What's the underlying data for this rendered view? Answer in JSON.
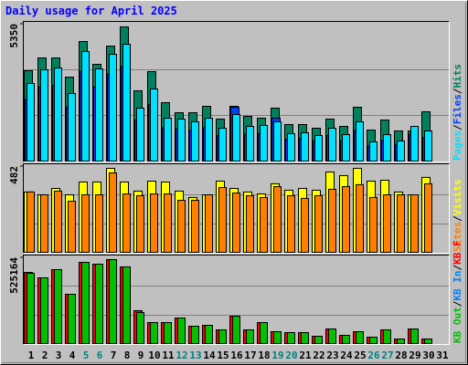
{
  "title": "Daily usage for April 2025",
  "separator": "/",
  "chart_data": [
    {
      "type": "bar",
      "categories": [
        "1",
        "2",
        "3",
        "4",
        "5",
        "6",
        "7",
        "8",
        "9",
        "10",
        "11",
        "12",
        "13",
        "14",
        "15",
        "16",
        "17",
        "18",
        "19",
        "20",
        "21",
        "22",
        "23",
        "24",
        "25",
        "26",
        "27",
        "28",
        "29",
        "30",
        "31"
      ],
      "ylim": [
        0,
        5350
      ],
      "yticks": [
        5350
      ],
      "series": [
        {
          "name": "Hits",
          "color": "#00805c",
          "values": [
            3531,
            4030,
            4030,
            3281,
            4672,
            3781,
            4494,
            5243,
            2746,
            3495,
            2283,
            1890,
            1890,
            2140,
            1641,
            2140,
            1748,
            1676,
            2069,
            1427,
            1427,
            1284,
            1641,
            1355,
            2104,
            1213,
            1605,
            1177,
            1177,
            1926,
            null
          ]
        },
        {
          "name": "Files",
          "color": "#0040ff",
          "values": [
            2400,
            2900,
            2950,
            2100,
            3500,
            2900,
            3400,
            3700,
            1600,
            2200,
            1300,
            1250,
            1200,
            1300,
            1000,
            2100,
            1050,
            1080,
            1680,
            850,
            880,
            780,
            1000,
            800,
            1200,
            590,
            800,
            620,
            1050,
            920,
            null
          ]
        },
        {
          "name": "Pages",
          "color": "#00e0ff",
          "values": [
            3032,
            3567,
            3638,
            2639,
            4280,
            3602,
            4173,
            4565,
            2069,
            2818,
            1676,
            1641,
            1534,
            1676,
            1284,
            1819,
            1355,
            1391,
            1534,
            1070,
            1106,
            999,
            1284,
            1034,
            1534,
            749,
            1034,
            785,
            1355,
            1177,
            null
          ]
        }
      ]
    },
    {
      "type": "bar",
      "categories": [
        "1",
        "2",
        "3",
        "4",
        "5",
        "6",
        "7",
        "8",
        "9",
        "10",
        "11",
        "12",
        "13",
        "14",
        "15",
        "16",
        "17",
        "18",
        "19",
        "20",
        "21",
        "22",
        "23",
        "24",
        "25",
        "26",
        "27",
        "28",
        "29",
        "30",
        "31"
      ],
      "ylim": [
        0,
        482
      ],
      "yticks": [
        482
      ],
      "series": [
        {
          "name": "Visits",
          "color": "#ffff00",
          "values": [
            339,
            323,
            359,
            323,
            395,
            395,
            472,
            395,
            344,
            400,
            395,
            344,
            308,
            323,
            400,
            359,
            339,
            328,
            385,
            349,
            359,
            349,
            451,
            431,
            472,
            400,
            405,
            339,
            323,
            421,
            null
          ]
        },
        {
          "name": "Sites",
          "color": "#ff8000",
          "values": [
            339,
            323,
            344,
            287,
            323,
            323,
            446,
            328,
            318,
            328,
            328,
            292,
            292,
            323,
            364,
            333,
            318,
            308,
            369,
            318,
            303,
            318,
            354,
            369,
            380,
            308,
            323,
            323,
            323,
            385,
            null
          ]
        }
      ]
    },
    {
      "type": "bar",
      "categories": [
        "1",
        "2",
        "3",
        "4",
        "5",
        "6",
        "7",
        "8",
        "9",
        "10",
        "11",
        "12",
        "13",
        "14",
        "15",
        "16",
        "17",
        "18",
        "19",
        "20",
        "21",
        "22",
        "23",
        "24",
        "25",
        "26",
        "27",
        "28",
        "29",
        "30",
        "31"
      ],
      "category_colors": [
        "#000000",
        "#000000",
        "#000000",
        "#000000",
        "#008080",
        "#008080",
        "#000000",
        "#000000",
        "#000000",
        "#000000",
        "#000000",
        "#008080",
        "#008080",
        "#000000",
        "#000000",
        "#000000",
        "#000000",
        "#000000",
        "#008080",
        "#008080",
        "#000000",
        "#000000",
        "#000000",
        "#000000",
        "#000000",
        "#008080",
        "#008080",
        "#000000",
        "#000000",
        "#000000",
        "#000000"
      ],
      "ylim": [
        0,
        525164
      ],
      "yticks": [
        525164
      ],
      "series": [
        {
          "name": "KB F",
          "color": "#ff0000",
          "values": [
            435800,
            402300,
            452500,
            301700,
            497200,
            486100,
            514000,
            469300,
            201200,
            128500,
            128500,
            156400,
            106200,
            111700,
            83800,
            167600,
            83800,
            128500,
            72600,
            67000,
            67000,
            44700,
            89400,
            50300,
            72600,
            39100,
            83800,
            27900,
            89400,
            27900,
            null
          ]
        },
        {
          "name": "KB In",
          "color": "#0080ff",
          "values": [
            0,
            0,
            0,
            0,
            0,
            0,
            0,
            0,
            0,
            0,
            0,
            0,
            0,
            0,
            0,
            0,
            0,
            0,
            0,
            0,
            0,
            0,
            0,
            0,
            0,
            0,
            0,
            0,
            0,
            0,
            null
          ]
        },
        {
          "name": "KB Out",
          "color": "#00c000",
          "values": [
            430200,
            402300,
            452500,
            301700,
            497200,
            486100,
            514000,
            469300,
            190000,
            128500,
            128500,
            156400,
            106200,
            111700,
            83800,
            167600,
            83800,
            128500,
            72600,
            67000,
            67000,
            44700,
            89400,
            50300,
            72600,
            39100,
            83800,
            27900,
            89400,
            27900,
            null
          ]
        }
      ]
    }
  ]
}
